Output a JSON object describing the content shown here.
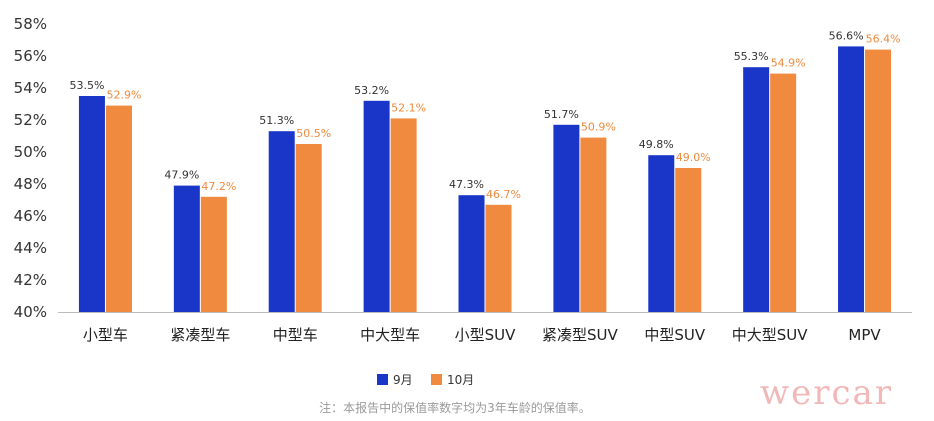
{
  "chart_data": {
    "type": "bar",
    "categories": [
      "小型车",
      "紧凑型车",
      "中型车",
      "中大型车",
      "小型SUV",
      "紧凑型SUV",
      "中型SUV",
      "中大型SUV",
      "MPV"
    ],
    "series": [
      {
        "name": "9月",
        "color": "#1a36c8",
        "values": [
          53.5,
          47.9,
          51.3,
          53.2,
          47.3,
          51.7,
          49.8,
          55.3,
          56.6
        ]
      },
      {
        "name": "10月",
        "color": "#f08a3e",
        "values": [
          52.9,
          47.2,
          50.5,
          52.1,
          46.7,
          50.9,
          49.0,
          54.9,
          56.4
        ]
      }
    ],
    "data_labels": [
      [
        "53.5%",
        "47.9%",
        "51.3%",
        "53.2%",
        "47.3%",
        "51.7%",
        "49.8%",
        "55.3%",
        "56.6%"
      ],
      [
        "52.9%",
        "47.2%",
        "50.5%",
        "52.1%",
        "46.7%",
        "50.9%",
        "49.0%",
        "54.9%",
        "56.4%"
      ]
    ],
    "y_ticks": [
      "40%",
      "42%",
      "44%",
      "46%",
      "48%",
      "50%",
      "52%",
      "54%",
      "56%",
      "58%"
    ],
    "ylim": [
      40,
      58
    ],
    "title": "",
    "xlabel": "",
    "ylabel": "",
    "grid": false,
    "legend_position": "bottom-center"
  },
  "note": "注：本报告中的保值率数字均为3年车龄的保值率。",
  "watermark": "wercar",
  "colors": {
    "watermark": "#f2b8b8",
    "axis": "#bbbbbb"
  }
}
